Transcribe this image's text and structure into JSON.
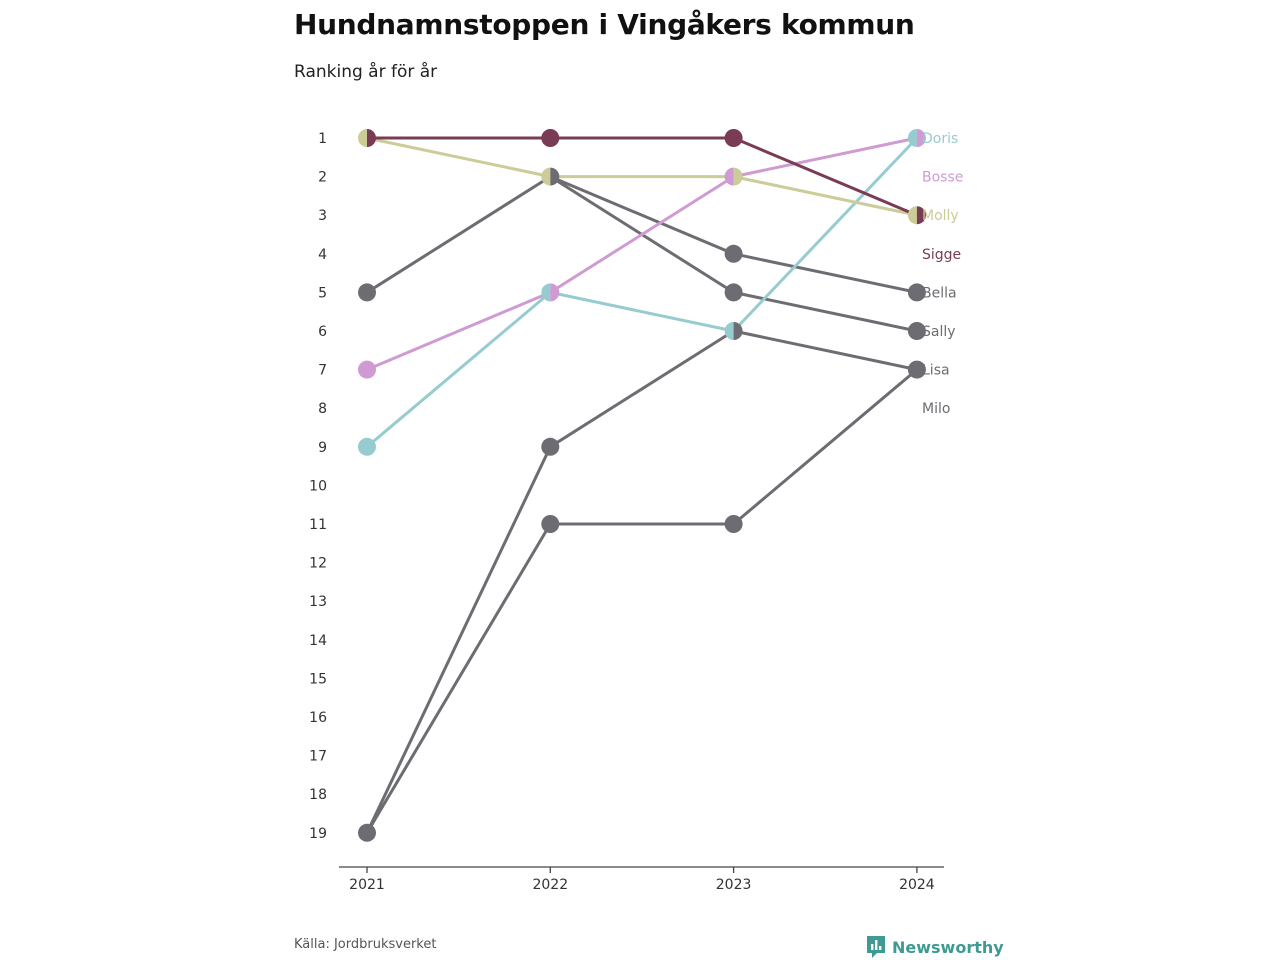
{
  "title": "Hundnamnstoppen i Vingåkers kommun",
  "subtitle": "Ranking år för år",
  "source": "Källa: Jordbruksverket",
  "brand": {
    "name": "Newsworthy",
    "icon": "bar-chart-logo-icon",
    "color": "#3f9a94"
  },
  "chart_data": {
    "type": "line",
    "x": [
      "2021",
      "2022",
      "2023",
      "2024"
    ],
    "y_ticks": [
      1,
      2,
      3,
      4,
      5,
      6,
      7,
      8,
      9,
      10,
      11,
      12,
      13,
      14,
      15,
      16,
      17,
      18,
      19
    ],
    "ylim": [
      1,
      19
    ],
    "y_reversed": true,
    "grid": false,
    "legend": "end-labels",
    "series": [
      {
        "name": "Doris",
        "color": "#96ccd0",
        "ranks": [
          9,
          5,
          6,
          1
        ],
        "label_rank": 1
      },
      {
        "name": "Bosse",
        "color": "#cf9bd2",
        "ranks": [
          7,
          5,
          2,
          1
        ],
        "label_rank": 2
      },
      {
        "name": "Molly",
        "color": "#cbcc98",
        "ranks": [
          1,
          2,
          2,
          3
        ],
        "label_rank": 3
      },
      {
        "name": "Sigge",
        "color": "#7a3b55",
        "ranks": [
          1,
          1,
          1,
          3
        ],
        "label_rank": 4
      },
      {
        "name": "Bella",
        "color": "#6d6c72",
        "ranks": [
          19,
          11,
          11,
          7
        ],
        "label_rank": 5
      },
      {
        "name": "Sally",
        "color": "#6d6c72",
        "ranks": [
          5,
          2,
          4,
          5
        ],
        "label_rank": 6
      },
      {
        "name": "Lisa",
        "color": "#6d6c72",
        "ranks": [
          19,
          9,
          6,
          7
        ],
        "label_rank": 7
      },
      {
        "name": "Milo",
        "color": "#6d6c72",
        "ranks": [
          null,
          2,
          5,
          6
        ],
        "label_rank": 8
      }
    ]
  }
}
